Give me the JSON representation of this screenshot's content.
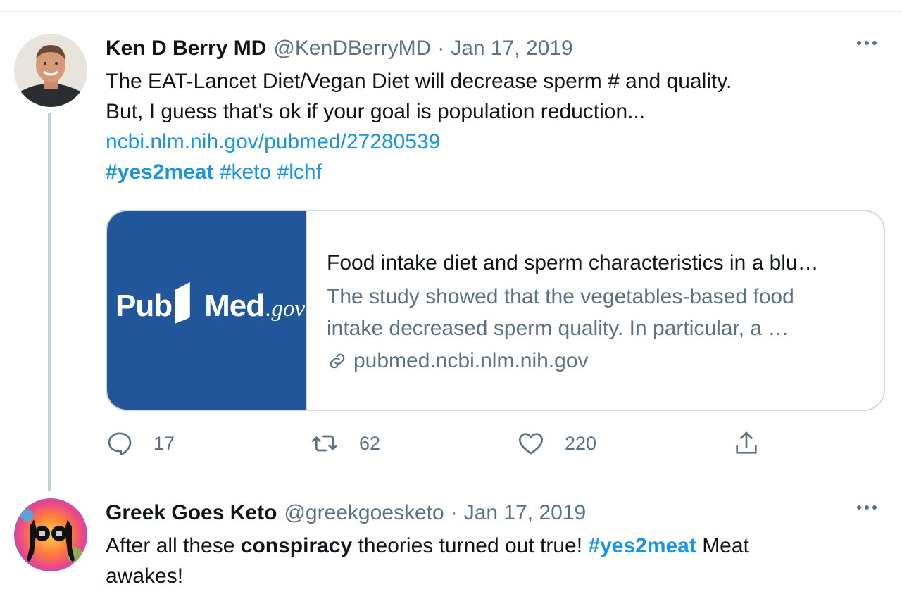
{
  "tweets": [
    {
      "author_name": "Ken D Berry MD",
      "handle": "@KenDBerryMD",
      "separator": "·",
      "date": "Jan 17, 2019",
      "text_line1": "The EAT-Lancet Diet/Vegan Diet will decrease sperm # and quality.",
      "text_line2": "But, I guess that's ok if your goal is population reduction...",
      "link": "ncbi.nlm.nih.gov/pubmed/27280539",
      "hashtags": [
        "#yes2meat",
        "#keto",
        "#lchf"
      ],
      "card": {
        "logo_pub": "Pub",
        "logo_med": "Med",
        "logo_gov": ".gov",
        "title": "Food intake diet and sperm characteristics in a blu…",
        "description_line1": "The study showed that the vegetables-based food",
        "description_line2": "intake decreased sperm quality. In particular, a …",
        "domain": "pubmed.ncbi.nlm.nih.gov"
      },
      "actions": {
        "reply_count": "17",
        "retweet_count": "62",
        "like_count": "220"
      }
    },
    {
      "author_name": "Greek Goes Keto",
      "handle": "@greekgoesketo",
      "separator": "·",
      "date": "Jan 17, 2019",
      "text_part1": "After all these ",
      "text_bold": "conspiracy",
      "text_part2": " theories turned out true! ",
      "hashtag": "#yes2meat",
      "text_part3": " Meat",
      "text_line2": "awakes!"
    }
  ],
  "colors": {
    "link": "#1b95e0",
    "secondary_text": "#5b7083",
    "card_thumb_bg": "#21579a",
    "border": "#cfd9de"
  },
  "icons": [
    "reply-icon",
    "retweet-icon",
    "like-icon",
    "share-icon",
    "link-icon",
    "more-icon"
  ]
}
